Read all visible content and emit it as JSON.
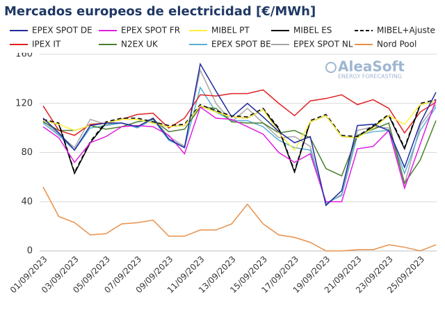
{
  "chart_data": {
    "type": "line",
    "title": "Mercados europeos de electricidad [€/MWh]",
    "watermark": {
      "brand": "AleaSoft",
      "tagline": "ENERGY FORECASTING"
    },
    "categories": [
      "01/09/2023",
      null,
      "03/09/2023",
      null,
      "05/09/2023",
      null,
      "07/09/2023",
      null,
      "09/09/2023",
      null,
      "11/09/2023",
      null,
      "13/09/2023",
      null,
      "15/09/2023",
      null,
      "17/09/2023",
      null,
      "19/09/2023",
      null,
      "21/09/2023",
      null,
      "23/09/2023",
      null,
      "25/09/2023",
      null
    ],
    "ylim": [
      0,
      160
    ],
    "yticks": [
      0,
      40,
      80,
      120,
      160
    ],
    "grid": true,
    "series": [
      {
        "name": "EPEX SPOT DE",
        "color": "#1f2a9e",
        "values": [
          108,
          96,
          82,
          102,
          104,
          104,
          101,
          108,
          91,
          84,
          152,
          130,
          109,
          120,
          109,
          97,
          88,
          93,
          37,
          49,
          102,
          103,
          98,
          68,
          104,
          129
        ]
      },
      {
        "name": "EPEX SPOT FR",
        "color": "#e01ee0",
        "values": [
          101,
          92,
          72,
          88,
          93,
          101,
          102,
          101,
          94,
          79,
          117,
          108,
          107,
          101,
          95,
          80,
          72,
          79,
          40,
          40,
          83,
          85,
          98,
          51,
          87,
          123
        ]
      },
      {
        "name": "MIBEL PT",
        "color": "#fff03a",
        "values": [
          106,
          103,
          98,
          102,
          104,
          107,
          107,
          104,
          101,
          102,
          118,
          113,
          109,
          108,
          115,
          96,
          82,
          105,
          110,
          93,
          92,
          100,
          110,
          103,
          119,
          122
        ]
      },
      {
        "name": "MIBEL ES",
        "color": "#000000",
        "values": [
          106,
          103,
          63,
          88,
          104,
          107,
          107,
          104,
          101,
          102,
          118,
          113,
          109,
          108,
          115,
          99,
          64,
          105,
          110,
          93,
          92,
          101,
          110,
          83,
          119,
          122
        ]
      },
      {
        "name": "MIBEL+Ajuste",
        "color": "#000000",
        "dashed": true,
        "values": [
          107,
          104,
          64,
          89,
          105,
          108,
          108,
          105,
          102,
          103,
          119,
          114,
          110,
          109,
          116,
          100,
          65,
          106,
          111,
          94,
          93,
          102,
          111,
          84,
          120,
          123
        ]
      },
      {
        "name": "IPEX IT",
        "color": "#e02020",
        "values": [
          118,
          98,
          94,
          103,
          104,
          107,
          111,
          112,
          100,
          108,
          127,
          126,
          128,
          128,
          131,
          120,
          110,
          122,
          124,
          127,
          119,
          123,
          116,
          96,
          113,
          121
        ]
      },
      {
        "name": "N2EX UK",
        "color": "#4a7f2e",
        "values": [
          105,
          98,
          98,
          102,
          99,
          101,
          105,
          107,
          97,
          99,
          117,
          116,
          105,
          104,
          104,
          96,
          98,
          92,
          67,
          61,
          94,
          99,
          104,
          55,
          74,
          106
        ]
      },
      {
        "name": "EPEX SPOT BE",
        "color": "#5aaed8",
        "values": [
          104,
          94,
          82,
          100,
          102,
          104,
          100,
          107,
          90,
          84,
          133,
          113,
          106,
          106,
          101,
          90,
          84,
          82,
          39,
          45,
          94,
          97,
          98,
          63,
          98,
          117
        ]
      },
      {
        "name": "EPEX SPOT NL",
        "color": "#a6a6a6",
        "values": [
          106,
          95,
          84,
          107,
          103,
          104,
          101,
          108,
          93,
          85,
          147,
          120,
          105,
          116,
          104,
          92,
          93,
          85,
          38,
          46,
          98,
          101,
          100,
          54,
          102,
          119
        ]
      },
      {
        "name": "Nord Pool",
        "color": "#e8904a",
        "values": [
          52,
          28,
          23,
          13,
          14,
          22,
          23,
          25,
          12,
          12,
          17,
          17,
          22,
          38,
          22,
          13,
          11,
          7,
          0,
          0,
          1,
          1,
          5,
          3,
          0,
          5
        ]
      }
    ]
  }
}
